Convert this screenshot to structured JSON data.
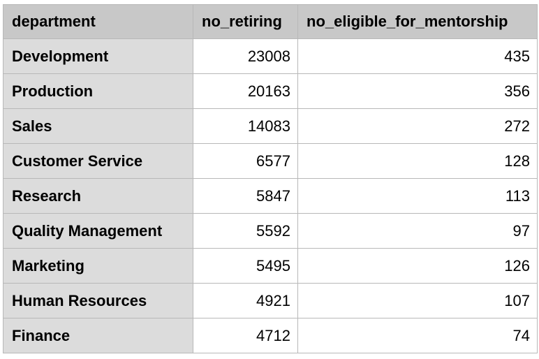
{
  "table": {
    "headers": [
      "department",
      "no_retiring",
      "no_eligible_for_mentorship"
    ],
    "rows": [
      {
        "department": "Development",
        "no_retiring": "23008",
        "no_eligible_for_mentorship": "435"
      },
      {
        "department": "Production",
        "no_retiring": "20163",
        "no_eligible_for_mentorship": "356"
      },
      {
        "department": "Sales",
        "no_retiring": "14083",
        "no_eligible_for_mentorship": "272"
      },
      {
        "department": "Customer Service",
        "no_retiring": "6577",
        "no_eligible_for_mentorship": "128"
      },
      {
        "department": "Research",
        "no_retiring": "5847",
        "no_eligible_for_mentorship": "113"
      },
      {
        "department": "Quality Management",
        "no_retiring": "5592",
        "no_eligible_for_mentorship": "97"
      },
      {
        "department": "Marketing",
        "no_retiring": "5495",
        "no_eligible_for_mentorship": "126"
      },
      {
        "department": "Human Resources",
        "no_retiring": "4921",
        "no_eligible_for_mentorship": "107"
      },
      {
        "department": "Finance",
        "no_retiring": "4712",
        "no_eligible_for_mentorship": "74"
      }
    ]
  },
  "colors": {
    "header_bg": "#c8c8c8",
    "first_column_bg": "#dcdcdc",
    "cell_bg": "#ffffff",
    "border": "#b8b8b8"
  }
}
